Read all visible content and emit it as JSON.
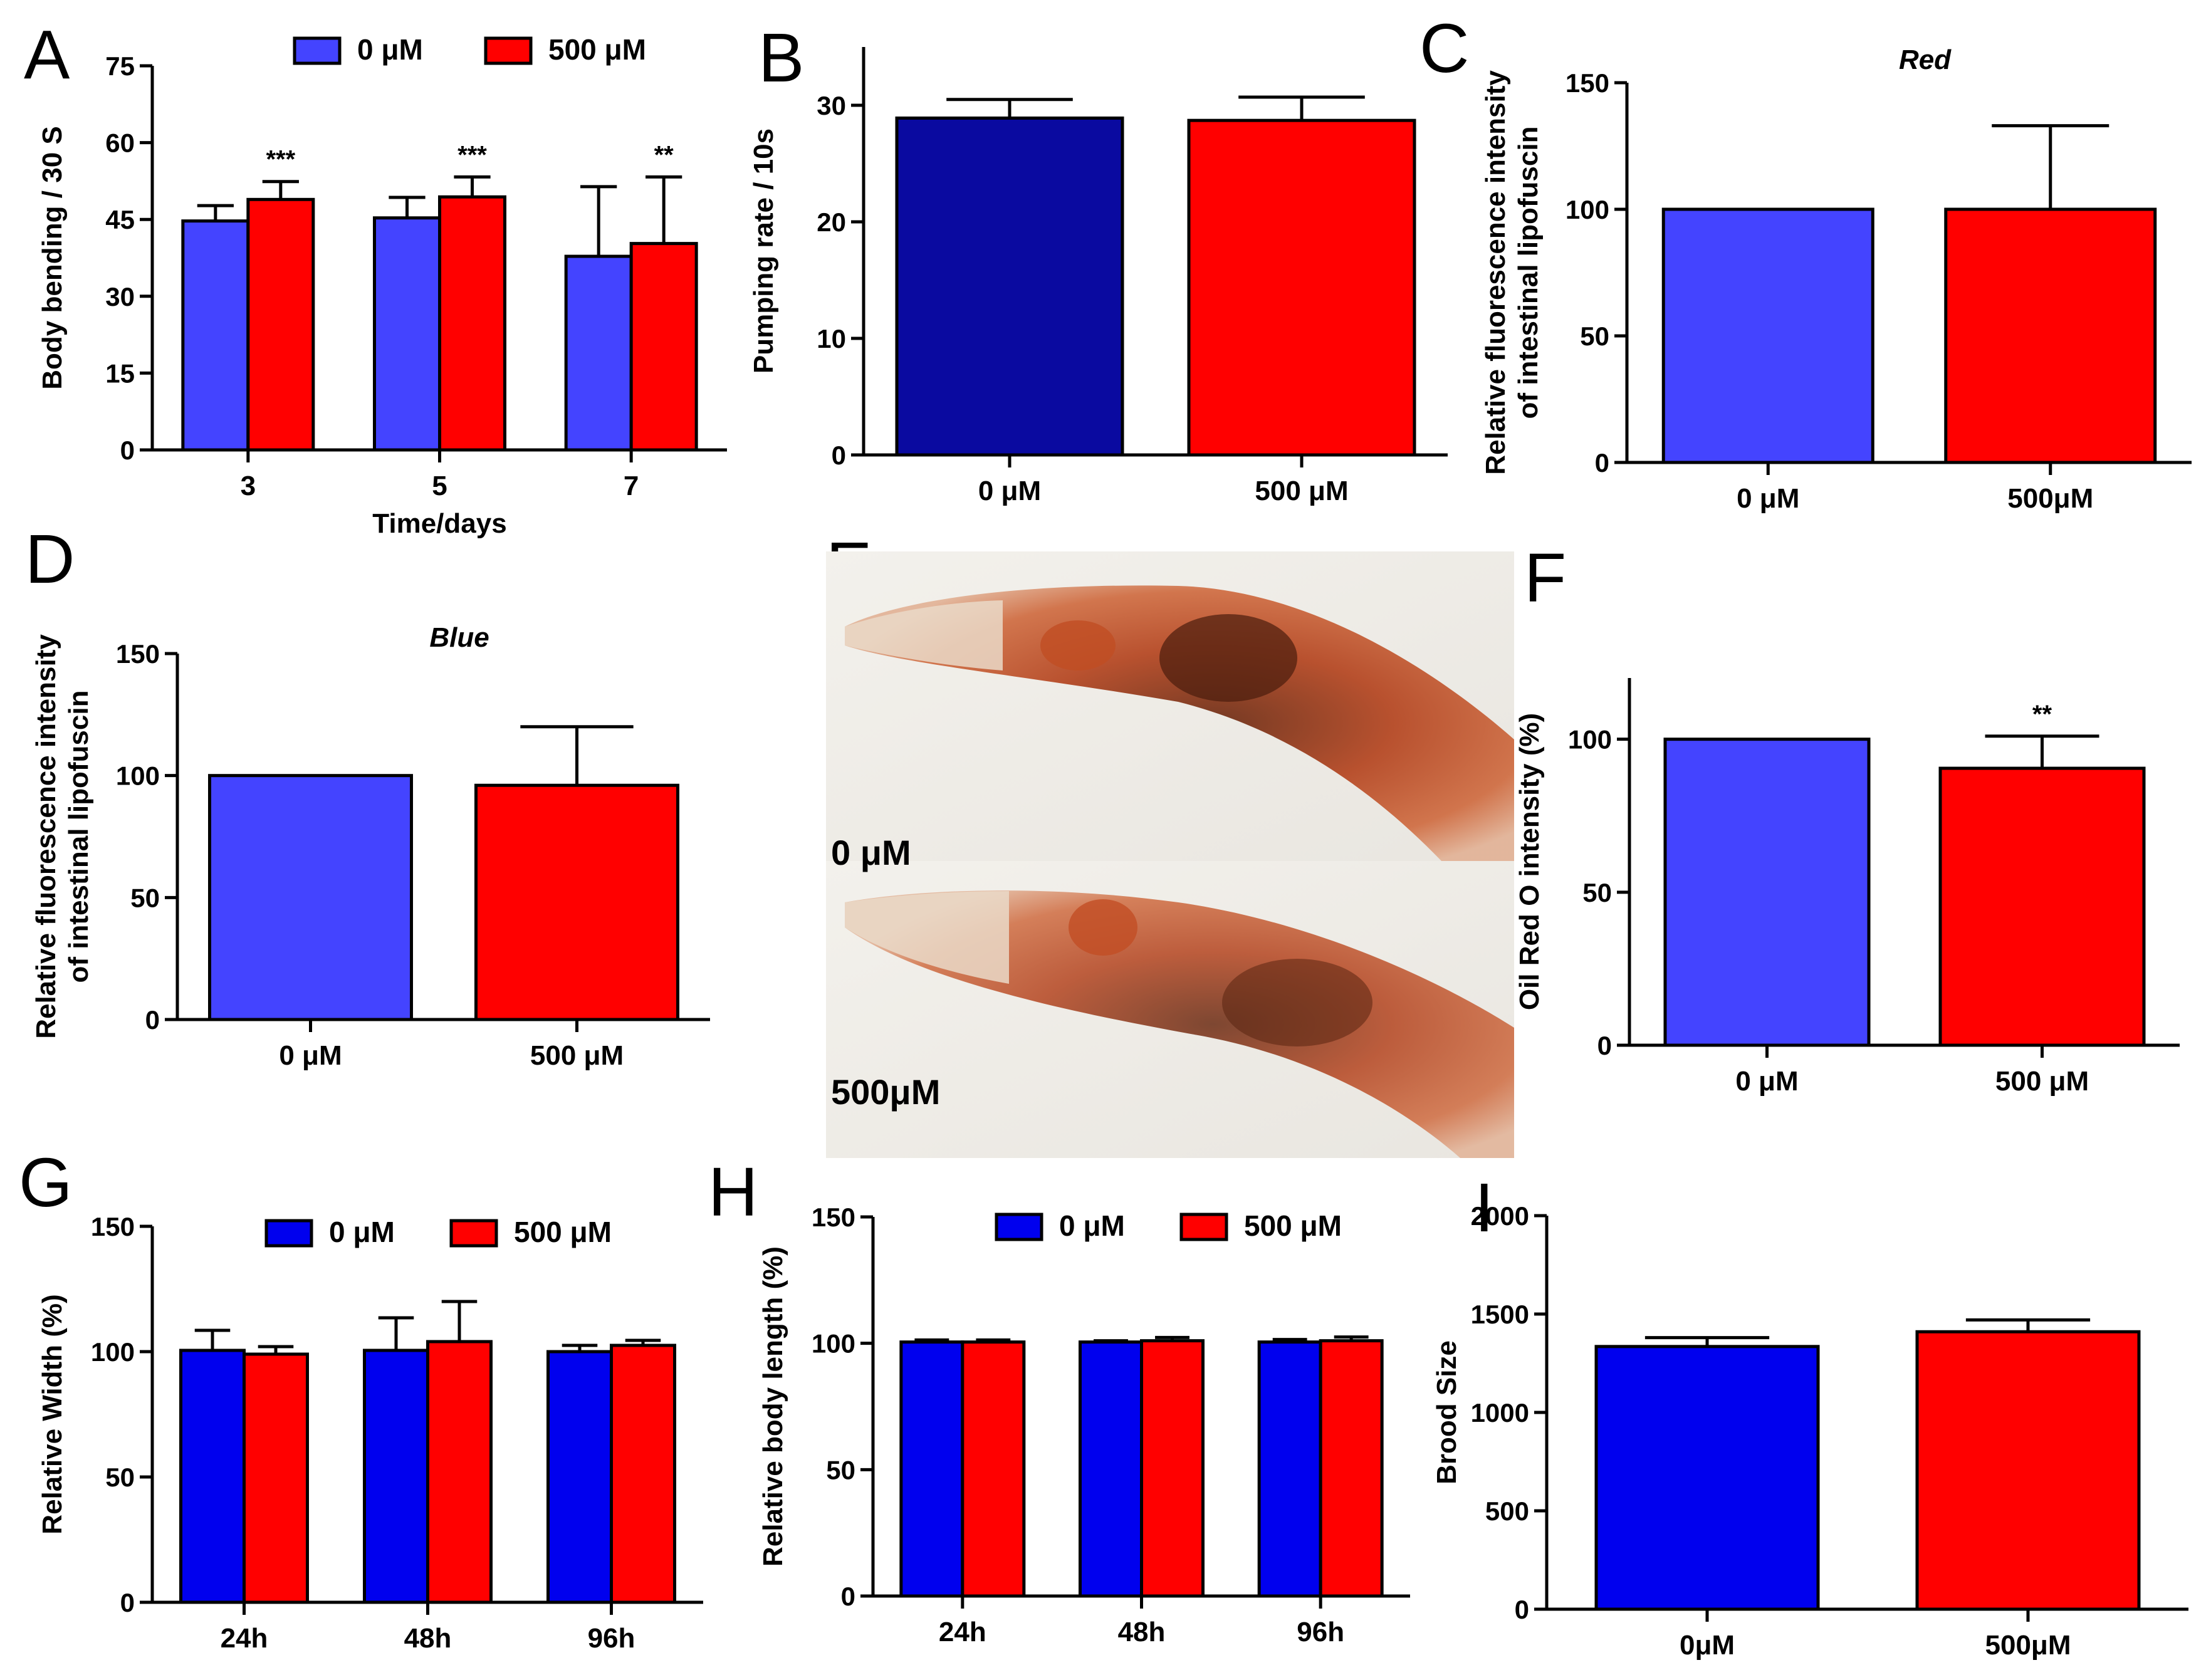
{
  "colors": {
    "zero_light": "#4444ff",
    "zero_dark": "#0000ee",
    "zero_navy": "#0a0aa0",
    "treat": "#ff0000",
    "axis": "#000000"
  },
  "micrograph": {
    "label_top": "0 μM",
    "label_bottom": "500μM"
  },
  "chart_data": [
    {
      "id": "A",
      "type": "bar",
      "letter": "A",
      "title": "",
      "xlabel": "Time/days",
      "ylabel": "Body bending / 30 S",
      "ylim": [
        0,
        75
      ],
      "yticks": [
        0,
        15,
        30,
        45,
        60,
        75
      ],
      "categories": [
        "3",
        "5",
        "7"
      ],
      "series": [
        {
          "name": "0 μM",
          "color": "zero_light",
          "values": [
            44.7,
            45.3,
            37.8
          ],
          "errors": [
            3.0,
            4.0,
            13.6
          ]
        },
        {
          "name": "500 μM",
          "color": "treat",
          "values": [
            48.9,
            49.4,
            40.3
          ],
          "errors": [
            3.5,
            3.9,
            13.0
          ]
        }
      ],
      "annotations": [
        "***",
        "***",
        "**"
      ],
      "legend": "top"
    },
    {
      "id": "B",
      "type": "bar",
      "letter": "B",
      "title": "",
      "xlabel": "",
      "ylabel": "Pumping rate / 10s",
      "ylim": [
        0,
        35
      ],
      "yticks": [
        0,
        10,
        20,
        30
      ],
      "categories": [
        "0 μM",
        "500 μM"
      ],
      "values": [
        28.9,
        28.7
      ],
      "errors": [
        1.6,
        2.0
      ],
      "colors": [
        "zero_navy",
        "treat"
      ]
    },
    {
      "id": "C",
      "type": "bar",
      "letter": "C",
      "title": "Red",
      "xlabel": "",
      "ylabel": "Relative fluorescence intensity of intestinal lipofuscin",
      "ylabel_lines": [
        "Relative fluorescence intensity",
        "of intestinal lipofuscin"
      ],
      "ylim": [
        0,
        150
      ],
      "yticks": [
        0,
        50,
        100,
        150
      ],
      "categories": [
        "0 μM",
        "500μM"
      ],
      "values": [
        100,
        100
      ],
      "errors": [
        0,
        33
      ],
      "colors": [
        "zero_light",
        "treat"
      ]
    },
    {
      "id": "D",
      "type": "bar",
      "letter": "D",
      "title": "Blue",
      "xlabel": "",
      "ylabel": "Relative fluorescence intensity of intestinal lipofuscin",
      "ylabel_lines": [
        "Relative fluorescence intensity",
        "of intestinal lipofuscin"
      ],
      "ylim": [
        0,
        150
      ],
      "yticks": [
        0,
        50,
        100,
        150
      ],
      "categories": [
        "0 μM",
        "500 μM"
      ],
      "values": [
        100,
        96
      ],
      "errors": [
        0,
        24
      ],
      "colors": [
        "zero_light",
        "treat"
      ]
    },
    {
      "id": "F",
      "type": "bar",
      "letter": "F",
      "title": "",
      "xlabel": "",
      "ylabel": "Oil Red O intensity (%)",
      "ylim": [
        0,
        120
      ],
      "yticks": [
        0,
        50,
        100
      ],
      "categories": [
        "0 μM",
        "500 μM"
      ],
      "values": [
        100,
        90.5
      ],
      "errors": [
        0,
        10.5
      ],
      "colors": [
        "zero_light",
        "treat"
      ],
      "annotations": [
        "",
        "**"
      ]
    },
    {
      "id": "G",
      "type": "bar",
      "letter": "G",
      "title": "",
      "xlabel": "",
      "ylabel": "Relative Width (%)",
      "ylim": [
        0,
        150
      ],
      "yticks": [
        0,
        50,
        100,
        150
      ],
      "categories": [
        "24h",
        "48h",
        "96h"
      ],
      "series": [
        {
          "name": "0 μM",
          "color": "zero_dark",
          "values": [
            100.5,
            100.5,
            100
          ],
          "errors": [
            8,
            13,
            2.5
          ]
        },
        {
          "name": "500 μM",
          "color": "treat",
          "values": [
            99,
            104,
            102.5
          ],
          "errors": [
            3,
            16,
            2
          ]
        }
      ],
      "legend": "top"
    },
    {
      "id": "H",
      "type": "bar",
      "letter": "H",
      "title": "",
      "xlabel": "",
      "ylabel": "Relative body length (%)",
      "ylim": [
        0,
        150
      ],
      "yticks": [
        0,
        50,
        100,
        150
      ],
      "categories": [
        "24h",
        "48h",
        "96h"
      ],
      "series": [
        {
          "name": "0 μM",
          "color": "zero_dark",
          "values": [
            100.5,
            100.5,
            100.5
          ],
          "errors": [
            0.8,
            0.5,
            1.0
          ]
        },
        {
          "name": "500 μM",
          "color": "treat",
          "values": [
            100.5,
            101,
            101
          ],
          "errors": [
            0.8,
            1.3,
            1.5
          ]
        }
      ],
      "legend": "top"
    },
    {
      "id": "I",
      "type": "bar",
      "letter": "I",
      "title": "",
      "xlabel": "",
      "ylabel": "Brood Size",
      "ylim": [
        0,
        2000
      ],
      "yticks": [
        0,
        500,
        1000,
        1500,
        2000
      ],
      "categories": [
        "0μM",
        "500μM"
      ],
      "values": [
        1335,
        1410
      ],
      "errors": [
        45,
        60
      ],
      "colors": [
        "zero_dark",
        "treat"
      ]
    }
  ]
}
